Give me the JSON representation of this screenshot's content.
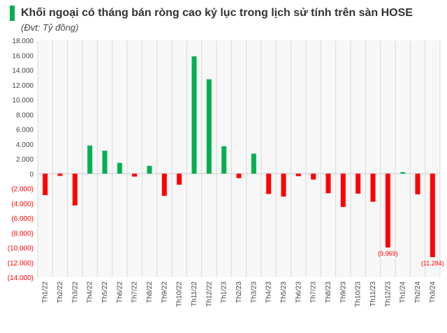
{
  "chart_data": {
    "type": "bar",
    "title": "Khối ngoại có tháng bán ròng cao kỷ lục trong lịch sử tính trên sàn HOSE",
    "subtitle": "(Đvt: Tỷ đồng)",
    "xlabel": "",
    "ylabel": "",
    "ylim": [
      -14000,
      18000
    ],
    "yticks": [
      18000,
      16000,
      14000,
      12000,
      10000,
      8000,
      6000,
      4000,
      2000,
      0,
      -2000,
      -4000,
      -6000,
      -8000,
      -10000,
      -12000,
      -14000
    ],
    "ytick_labels": [
      "18.000",
      "16.000",
      "14.000",
      "12.000",
      "10.000",
      "8.000",
      "6.000",
      "4.000",
      "2.000",
      "0",
      "(2.000)",
      "(4.000)",
      "(6.000)",
      "(8.000)",
      "(10.000)",
      "(12.000)",
      "(14.000)"
    ],
    "grid": "vertical",
    "categories": [
      "Th1/22",
      "Th2/22",
      "Th3/22",
      "Th4/22",
      "Th5/22",
      "Th6/22",
      "Th7/22",
      "Th8/22",
      "Th9/22",
      "Th10/22",
      "Th11/22",
      "Th12/22",
      "Th1/23",
      "Th2/23",
      "Th3/23",
      "Th4/23",
      "Th5/23",
      "Th6/23",
      "Th7/23",
      "Th8/23",
      "Th9/23",
      "Th10/23",
      "Th11/23",
      "Th12/23",
      "Th1/24",
      "Th2/24",
      "Th3/24"
    ],
    "values": [
      -2900,
      -300,
      -4300,
      3800,
      3100,
      1450,
      -400,
      1050,
      -3000,
      -1500,
      15850,
      12750,
      3700,
      -600,
      2700,
      -2750,
      -3100,
      -350,
      -800,
      -2650,
      -4500,
      -2700,
      -3800,
      -9969,
      200,
      -2800,
      -11284
    ],
    "data_labels": [
      {
        "index": 23,
        "text": "(9.969)"
      },
      {
        "index": 26,
        "text": "(11.284)"
      }
    ],
    "colors": {
      "positive": "#00b050",
      "negative": "#ff0000",
      "grid": "#d9d9d9",
      "plot_bg": "#f7f7f7"
    }
  }
}
